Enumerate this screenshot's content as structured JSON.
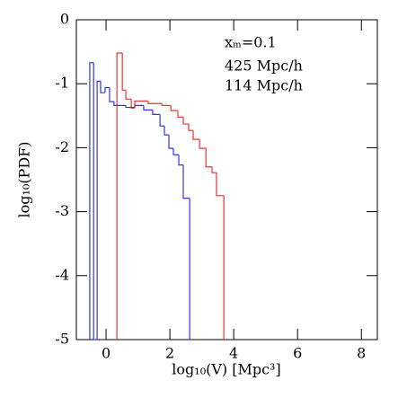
{
  "chart_data": {
    "type": "histogram",
    "xlabel": "log₁₀(V) [Mpc³]",
    "ylabel": "log₁₀(PDF)",
    "annotation": "xₘ=0.1",
    "xlim": [
      -0.93,
      8.5
    ],
    "ylim": [
      -5,
      0
    ],
    "xticks": [
      0,
      2,
      4,
      6,
      8
    ],
    "yticks": [
      0,
      -1,
      -2,
      -3,
      -4,
      -5
    ],
    "series": [
      {
        "name": "425 Mpc/h",
        "color": "#ee3333",
        "bins": [
          0.34,
          0.51,
          0.62,
          0.79,
          0.9,
          1.04,
          1.32,
          1.75,
          2.03,
          2.25,
          2.42,
          2.59,
          2.73,
          2.93,
          3.13,
          3.32,
          3.46,
          3.69
        ],
        "values": [
          -0.52,
          -1.1,
          -1.24,
          -1.38,
          -1.27,
          -1.27,
          -1.31,
          -1.34,
          -1.42,
          -1.52,
          -1.63,
          -1.73,
          -1.87,
          -2.01,
          -2.3,
          -2.39,
          -2.75
        ]
      },
      {
        "name": "114 Mpc/h",
        "color": "#3333ee",
        "bins": [
          -0.51,
          -0.39,
          -0.28,
          -0.17,
          -0.03,
          0.11,
          0.25,
          0.62,
          0.9,
          1.18,
          1.46,
          1.69,
          1.83,
          1.97,
          2.11,
          2.28,
          2.42,
          2.62
        ],
        "values": [
          -0.67,
          -5,
          -0.96,
          -1.14,
          -1.06,
          -1.28,
          -1.34,
          -1.37,
          -1.34,
          -1.41,
          -1.48,
          -1.66,
          -1.8,
          -2.01,
          -2.11,
          -2.27,
          -2.79
        ]
      }
    ]
  }
}
